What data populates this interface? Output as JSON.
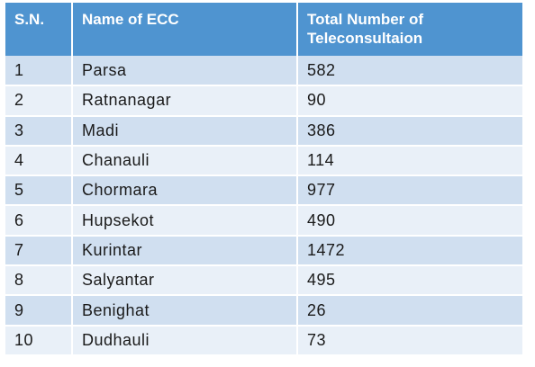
{
  "table": {
    "headers": [
      "S.N.",
      "Name of ECC",
      "Total Number of Teleconsultaion"
    ],
    "rows": [
      [
        "1",
        "Parsa",
        "582"
      ],
      [
        "2",
        "Ratnanagar",
        "90"
      ],
      [
        "3",
        "Madi",
        "386"
      ],
      [
        "4",
        "Chanauli",
        "114"
      ],
      [
        "5",
        "Chormara",
        "977"
      ],
      [
        "6",
        "Hupsekot",
        "490"
      ],
      [
        "7",
        "Kurintar",
        "1472"
      ],
      [
        "8",
        "Salyantar",
        "495"
      ],
      [
        "9",
        "Benighat",
        "26"
      ],
      [
        "10",
        "Dudhauli",
        "73"
      ]
    ]
  },
  "colors": {
    "header_bg": "#4f94d0",
    "row_odd_bg": "#d0dff0",
    "row_even_bg": "#e9f0f8"
  }
}
